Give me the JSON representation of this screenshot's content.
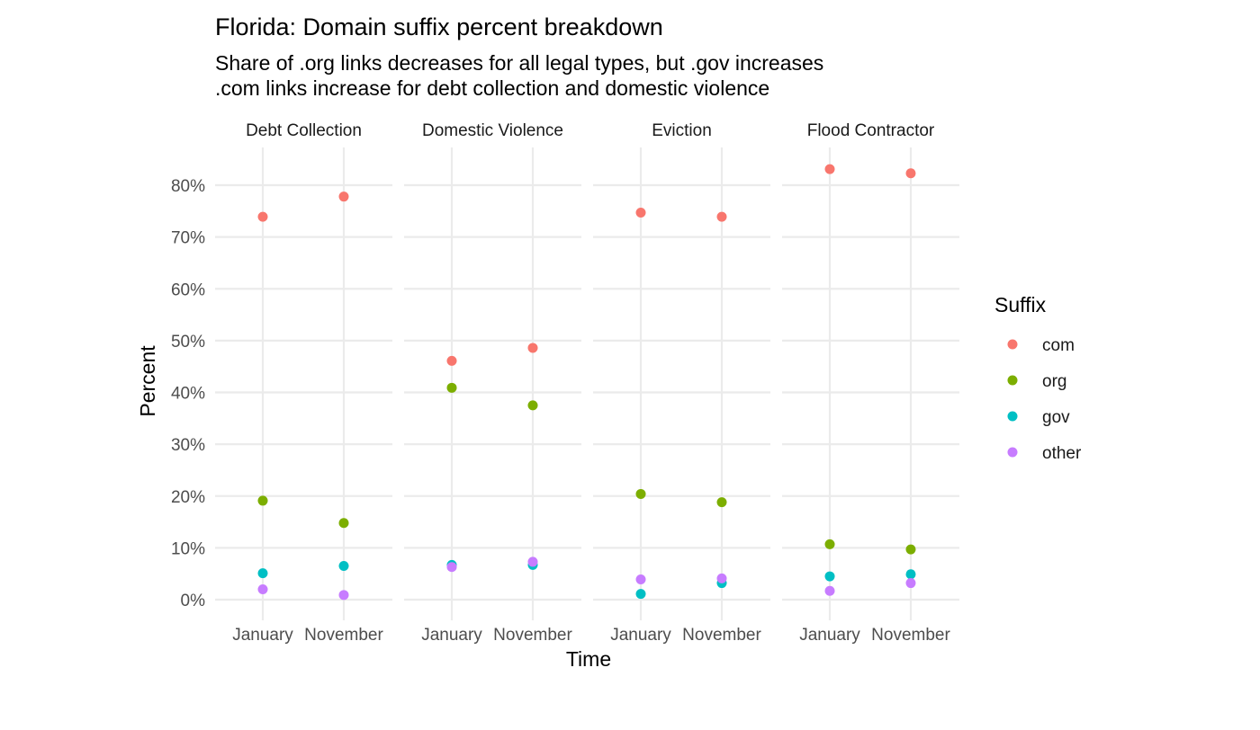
{
  "chart_data": {
    "type": "scatter",
    "title": "Florida: Domain suffix percent breakdown",
    "subtitle_lines": [
      "Share of .org links decreases for all legal types, but .gov increases",
      ".com links increase for debt collection and domestic violence"
    ],
    "xlabel": "Time",
    "ylabel": "Percent",
    "categories": [
      "January",
      "November"
    ],
    "ylim": [
      0,
      87
    ],
    "y_ticks": [
      0,
      10,
      20,
      30,
      40,
      50,
      60,
      70,
      80
    ],
    "y_tick_labels": [
      "0%",
      "10%",
      "20%",
      "30%",
      "40%",
      "50%",
      "60%",
      "70%",
      "80%"
    ],
    "grid": true,
    "legend": {
      "title": "Suffix",
      "placement": "right"
    },
    "series_colors": {
      "com": "#F8766D",
      "org": "#7CAE00",
      "gov": "#00BFC4",
      "other": "#C77CFF"
    },
    "panels": [
      {
        "name": "Debt Collection",
        "series": [
          {
            "name": "com",
            "values": [
              73.9,
              77.8
            ]
          },
          {
            "name": "org",
            "values": [
              19.1,
              14.8
            ]
          },
          {
            "name": "gov",
            "values": [
              5.1,
              6.5
            ]
          },
          {
            "name": "other",
            "values": [
              2.0,
              0.9
            ]
          }
        ]
      },
      {
        "name": "Domestic Violence",
        "series": [
          {
            "name": "com",
            "values": [
              46.1,
              48.6
            ]
          },
          {
            "name": "org",
            "values": [
              40.9,
              37.5
            ]
          },
          {
            "name": "gov",
            "values": [
              6.7,
              6.7
            ]
          },
          {
            "name": "other",
            "values": [
              6.3,
              7.3
            ]
          }
        ]
      },
      {
        "name": "Eviction",
        "series": [
          {
            "name": "com",
            "values": [
              74.7,
              73.9
            ]
          },
          {
            "name": "org",
            "values": [
              20.4,
              18.8
            ]
          },
          {
            "name": "gov",
            "values": [
              1.1,
              3.2
            ]
          },
          {
            "name": "other",
            "values": [
              3.9,
              4.1
            ]
          }
        ]
      },
      {
        "name": "Flood Contractor",
        "series": [
          {
            "name": "com",
            "values": [
              83.1,
              82.3
            ]
          },
          {
            "name": "org",
            "values": [
              10.7,
              9.7
            ]
          },
          {
            "name": "gov",
            "values": [
              4.5,
              4.9
            ]
          },
          {
            "name": "other",
            "values": [
              1.7,
              3.2
            ]
          }
        ]
      }
    ]
  }
}
